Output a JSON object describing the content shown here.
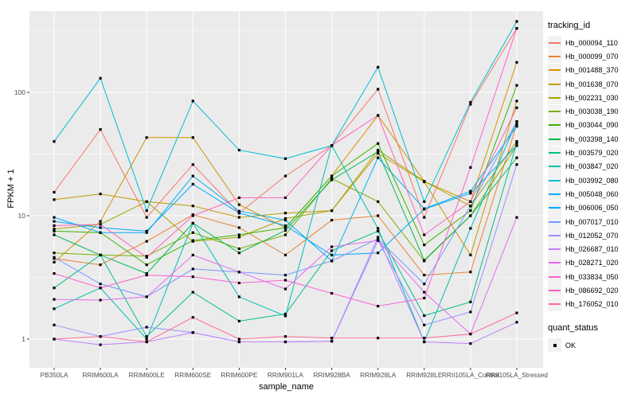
{
  "figure": {
    "y_axis": {
      "label": "FPKM + 1",
      "ticks": [
        "1",
        "10",
        "100"
      ],
      "tick_values": [
        1,
        10,
        100
      ]
    },
    "x_axis": {
      "label": "sample_name"
    },
    "colors": {
      "panel_bg": "#EBEBEB",
      "grid": "#FFFFFF",
      "axis_text": "#4D4D4D",
      "point": "#000000",
      "legend_key_bg": "#F2F2F2"
    }
  },
  "legend": {
    "tracking_title": "tracking_id",
    "quant_title": "quant_status",
    "quant_items": [
      {
        "label": "OK",
        "shape": "filled-square",
        "color": "#000000"
      }
    ]
  },
  "chart_data": {
    "type": "line",
    "title": "",
    "xlabel": "sample_name",
    "ylabel": "FPKM + 1",
    "y_scale": "log10",
    "ylim": [
      0.6,
      450
    ],
    "grid": true,
    "legend_position": "right",
    "point_marker": "black filled square at every data point (quant_status=OK)",
    "categories": [
      "PB350LA",
      "RRIM600LA",
      "RRIM600LE",
      "RRIM600SE",
      "RRIM600PE",
      "RRIM901LA",
      "RRIM928BA",
      "RRIM928LA",
      "RRIM928LE",
      "RRII105LA_Control",
      "RRII105LA_Stressed"
    ],
    "series": [
      {
        "name": "Hb_000094_110",
        "color": "#F8766D",
        "values": [
          15.5,
          50,
          9.7,
          26,
          10.5,
          21,
          37,
          106,
          9.7,
          80,
          330
        ]
      },
      {
        "name": "Hb_000099_070",
        "color": "#EA8331",
        "values": [
          4.5,
          4.0,
          6.2,
          10.2,
          8.0,
          4.8,
          9.2,
          10,
          3.3,
          3.5,
          55
        ]
      },
      {
        "name": "Hb_001488_370",
        "color": "#D89000",
        "values": [
          4.2,
          9.0,
          43,
          43,
          12.3,
          8.0,
          21,
          65,
          19,
          13,
          175
        ]
      },
      {
        "name": "Hb_001638_070",
        "color": "#C09B00",
        "values": [
          13.5,
          15,
          13,
          12,
          9.7,
          10.5,
          11,
          32,
          18.8,
          4.8,
          85
        ]
      },
      {
        "name": "Hb_002231_030",
        "color": "#A3A500",
        "values": [
          7.8,
          8.5,
          13,
          6.2,
          6.7,
          9.5,
          11,
          34,
          19,
          12,
          40
        ]
      },
      {
        "name": "Hb_003038_190",
        "color": "#7CAE00",
        "values": [
          5.0,
          4.8,
          4.7,
          7.3,
          5.4,
          7.0,
          20,
          13,
          4.3,
          10,
          37
        ]
      },
      {
        "name": "Hb_003044_090",
        "color": "#39B600",
        "values": [
          7.5,
          7.3,
          4.0,
          6.3,
          7.0,
          8.0,
          21,
          38.5,
          5.8,
          11,
          114
        ]
      },
      {
        "name": "Hb_003398_140",
        "color": "#00BB4E",
        "values": [
          7.0,
          4.8,
          3.4,
          8.7,
          5.0,
          7.6,
          19.5,
          33,
          4.35,
          10,
          29.5
        ]
      },
      {
        "name": "Hb_003579_020",
        "color": "#00C087",
        "values": [
          2.6,
          4.8,
          1.05,
          2.4,
          1.4,
          1.6,
          5.2,
          7.5,
          1.55,
          2.0,
          39
        ]
      },
      {
        "name": "Hb_003847_020",
        "color": "#00C0AF",
        "values": [
          1.76,
          2.6,
          1.0,
          8.7,
          2.2,
          1.54,
          37,
          7.9,
          0.95,
          7.9,
          58
        ]
      },
      {
        "name": "Hb_003992_080",
        "color": "#00BCD8",
        "values": [
          40,
          130,
          11,
          85,
          34,
          29,
          37,
          160,
          13,
          83,
          375
        ]
      },
      {
        "name": "Hb_005048_060",
        "color": "#00B0F6",
        "values": [
          9.7,
          7.3,
          7.3,
          21,
          10.9,
          9.2,
          4.3,
          29.5,
          11.4,
          15.8,
          53
        ]
      },
      {
        "name": "Hb_006006_050",
        "color": "#00A5FF",
        "values": [
          9.0,
          8.0,
          7.5,
          18,
          10.5,
          8.3,
          4.8,
          5.0,
          11.3,
          15.2,
          37
        ]
      },
      {
        "name": "Hb_007017_010",
        "color": "#7997FF",
        "values": [
          4.6,
          2.8,
          2.2,
          3.7,
          3.5,
          3.3,
          4.3,
          6.5,
          2.8,
          12,
          58
        ]
      },
      {
        "name": "Hb_012052_070",
        "color": "#9590FF",
        "values": [
          1.3,
          1.05,
          1.25,
          1.13,
          0.95,
          0.95,
          0.96,
          6.3,
          1.3,
          1.66,
          26
        ]
      },
      {
        "name": "Hb_026687_010",
        "color": "#BF80FF",
        "values": [
          1.0,
          0.9,
          0.95,
          1.13,
          0.95,
          0.95,
          0.96,
          6.7,
          0.95,
          0.92,
          1.37
        ]
      },
      {
        "name": "Hb_028271_020",
        "color": "#E76BF3",
        "values": [
          2.1,
          2.07,
          2.2,
          4.8,
          3.5,
          2.55,
          5.6,
          6.3,
          2.4,
          1.1,
          9.7
        ]
      },
      {
        "name": "Hb_033834_050",
        "color": "#FD61D1",
        "values": [
          3.4,
          2.6,
          3.3,
          3.2,
          2.85,
          3.0,
          2.35,
          1.85,
          2.15,
          24.6,
          330
        ]
      },
      {
        "name": "Hb_086692_020",
        "color": "#FF62BC",
        "values": [
          8.3,
          8.5,
          4.6,
          10,
          14,
          14,
          37,
          65,
          7.0,
          13,
          75
        ]
      },
      {
        "name": "Hb_176052_010",
        "color": "#FF6A98",
        "values": [
          1.0,
          1.05,
          0.95,
          1.5,
          1.0,
          1.05,
          1.02,
          1.02,
          1.02,
          1.1,
          1.63
        ]
      }
    ]
  }
}
